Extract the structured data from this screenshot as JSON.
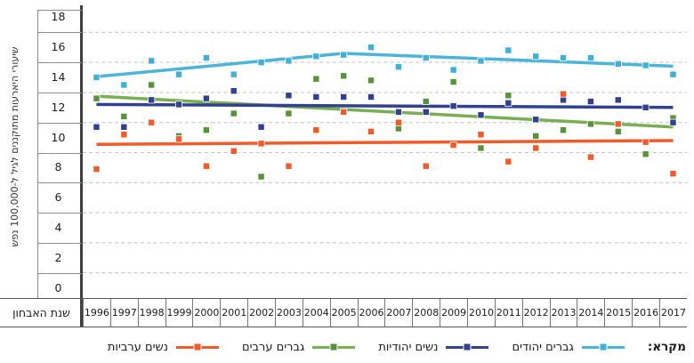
{
  "axes": {
    "y_title": "שיעורי היארעות מתוקננים לגיל ל-100,000 נפש",
    "x_title": "שנת האבחון",
    "y_ticks": [
      18,
      16,
      14,
      12,
      10,
      8,
      6,
      4,
      2,
      0
    ]
  },
  "legend": {
    "title": "מקרא:",
    "items": [
      "גברים יהודים",
      "נשים יהודיות",
      "גברים ערבים",
      "נשים ערביות"
    ]
  },
  "chart_data": {
    "type": "scatter",
    "x": [
      1996,
      1997,
      1998,
      1999,
      2000,
      2001,
      2002,
      2003,
      2004,
      2005,
      2006,
      2007,
      2008,
      2009,
      2010,
      2011,
      2012,
      2013,
      2014,
      2015,
      2016,
      2017
    ],
    "xlabel": "שנת האבחון",
    "ylabel": "שיעורי היארעות מתוקננים לגיל ל-100,000 נפש",
    "ylim": [
      0,
      19
    ],
    "grid_values": [
      1,
      3,
      5,
      7,
      9,
      11,
      13,
      15,
      17
    ],
    "legend_position": "bottom",
    "series": [
      {
        "name": "גברים יהודים",
        "marker_color": "#41b0d6",
        "line_color": "#4cb4d8",
        "values": [
          14.0,
          13.5,
          15.1,
          14.2,
          15.3,
          14.2,
          15.0,
          15.1,
          15.4,
          15.5,
          16.0,
          14.7,
          15.3,
          14.5,
          15.1,
          15.8,
          15.4,
          15.3,
          15.3,
          14.9,
          14.8,
          14.2
        ],
        "trend": [
          [
            1996,
            14.05
          ],
          [
            2005,
            15.6
          ],
          [
            2017,
            14.75
          ]
        ]
      },
      {
        "name": "נשים יהודיות",
        "marker_color": "#31408f",
        "line_color": "#31408f",
        "values": [
          10.7,
          10.7,
          12.5,
          12.2,
          12.6,
          13.1,
          10.7,
          12.8,
          12.7,
          12.7,
          12.7,
          11.7,
          11.7,
          12.1,
          11.5,
          12.3,
          11.2,
          12.5,
          12.4,
          12.5,
          12.0,
          11.0
        ],
        "trend": [
          [
            1996,
            12.2
          ],
          [
            2017,
            12.0
          ]
        ]
      },
      {
        "name": "גברים ערבים",
        "marker_color": "#56933a",
        "line_color": "#79ae55",
        "values": [
          12.6,
          11.4,
          13.5,
          10.1,
          10.5,
          11.6,
          7.4,
          11.6,
          13.9,
          14.1,
          13.8,
          10.6,
          12.4,
          13.7,
          9.3,
          12.8,
          10.1,
          10.5,
          10.9,
          10.4,
          8.9,
          11.3
        ],
        "trend": [
          [
            1996,
            12.75
          ],
          [
            2017,
            10.7
          ]
        ]
      },
      {
        "name": "נשים ערביות",
        "marker_color": "#f15b2a",
        "line_color": "#f15b2a",
        "values": [
          7.9,
          10.2,
          11.0,
          9.9,
          8.1,
          9.1,
          9.6,
          8.1,
          10.5,
          11.7,
          10.4,
          11.0,
          8.1,
          9.5,
          10.2,
          8.4,
          9.3,
          12.9,
          8.7,
          10.9,
          9.7,
          7.6
        ],
        "trend": [
          [
            1996,
            9.55
          ],
          [
            2017,
            9.8
          ]
        ]
      }
    ]
  }
}
